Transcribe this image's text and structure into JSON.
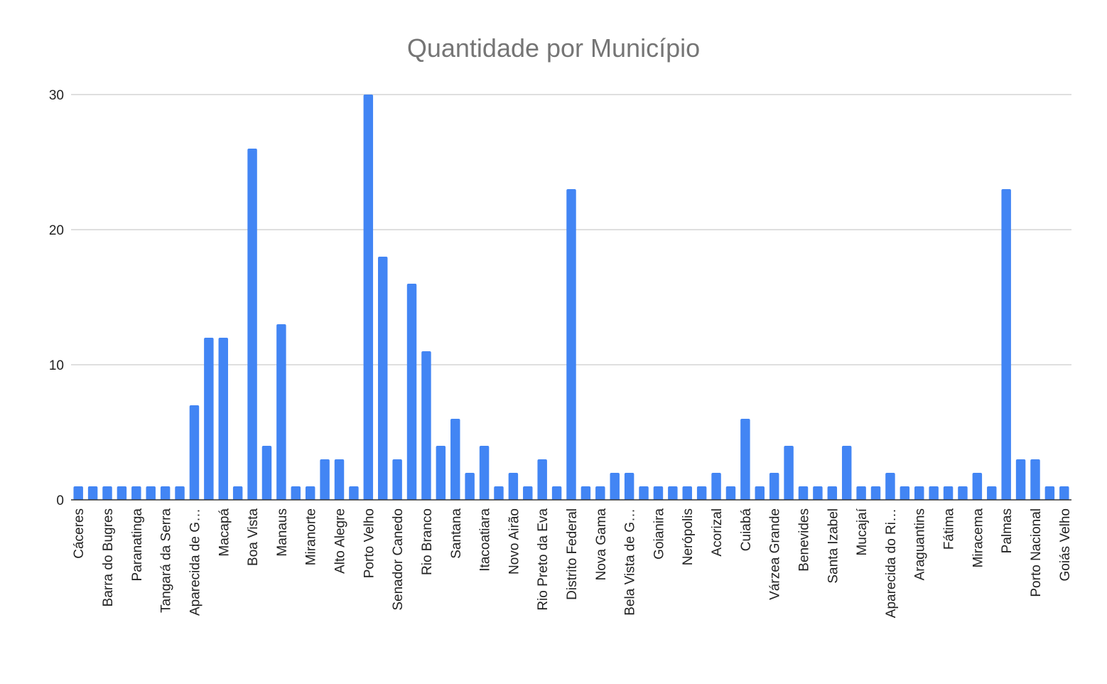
{
  "chart_data": {
    "type": "bar",
    "title": "Quantidade por Município",
    "xlabel": "",
    "ylabel": "",
    "ylim": [
      0,
      30
    ],
    "yticks": [
      0,
      10,
      20,
      30
    ],
    "grid": true,
    "legend": "none",
    "bar_color": "#4285f4",
    "categories": [
      "Cáceres",
      "",
      "Barra do Bugres",
      "",
      "Paranatinga",
      "",
      "Tangará da Serra",
      "",
      "Aparecida de G…",
      "",
      "Macapá",
      "",
      "Boa Vista",
      "",
      "Manaus",
      "",
      "Miranorte",
      "",
      "Alto Alegre",
      "",
      "Porto Velho",
      "",
      "Senador Canedo",
      "",
      "Rio Branco",
      "",
      "Santana",
      "",
      "Itacoatiara",
      "",
      "Novo Airão",
      "",
      "Rio Preto da Eva",
      "",
      "Distrito Federal",
      "",
      "Nova Gama",
      "",
      "Bela Vista de G…",
      "",
      "Goianira",
      "",
      "Nerópolis",
      "",
      "Acorizal",
      "",
      "Cuiabá",
      "",
      "Várzea Grande",
      "",
      "Benevides",
      "",
      "Santa Izabel",
      "",
      "Mucajaí",
      "",
      "Aparecida do Ri…",
      "",
      "Araguantins",
      "",
      "Fátima",
      "",
      "Miracema",
      "",
      "Palmas",
      "",
      "Porto Nacional",
      "",
      "Goiás Velho"
    ],
    "values": [
      1,
      1,
      1,
      1,
      1,
      1,
      1,
      1,
      7,
      12,
      12,
      1,
      26,
      4,
      13,
      1,
      1,
      3,
      3,
      1,
      30,
      18,
      3,
      16,
      11,
      4,
      6,
      2,
      4,
      1,
      2,
      1,
      3,
      1,
      23,
      1,
      1,
      2,
      2,
      1,
      1,
      1,
      1,
      1,
      2,
      1,
      6,
      1,
      2,
      4,
      1,
      1,
      1,
      4,
      1,
      1,
      2,
      1,
      1,
      1,
      1,
      1,
      2,
      1,
      23,
      3,
      3,
      1,
      1
    ]
  }
}
